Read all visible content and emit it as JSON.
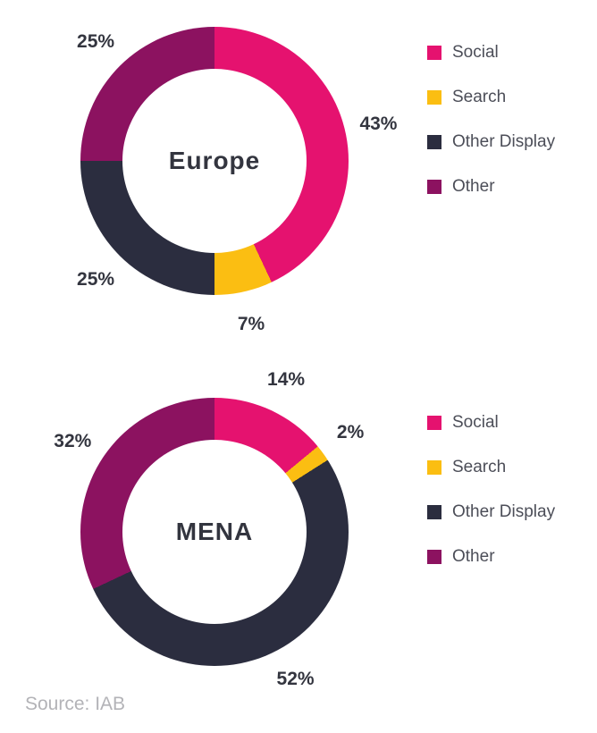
{
  "page": {
    "source_label": "Source: IAB"
  },
  "colors": {
    "social": "#E5126F",
    "search": "#FBBE12",
    "other_display": "#2B2D3F",
    "other": "#8C1260",
    "label_text": "#33353F",
    "legend_text": "#4C4E58",
    "source_text": "#B3B3B7",
    "background": "#FFFFFF"
  },
  "legend": {
    "position": "right",
    "items": [
      {
        "label": "Social",
        "color_key": "social"
      },
      {
        "label": "Search",
        "color_key": "search"
      },
      {
        "label": "Other Display",
        "color_key": "other_display"
      },
      {
        "label": "Other",
        "color_key": "other"
      }
    ]
  },
  "chart_data": [
    {
      "type": "pie",
      "subtype": "donut",
      "title": "Europe",
      "center_label": "Europe",
      "categories": [
        "Social",
        "Search",
        "Other Display",
        "Other"
      ],
      "values": [
        43,
        7,
        25,
        25
      ],
      "unit": "%",
      "data_labels": [
        "43%",
        "7%",
        "25%",
        "25%"
      ],
      "colors": [
        "#E5126F",
        "#FBBE12",
        "#2B2D3F",
        "#8C1260"
      ],
      "start_angle_deg": 0,
      "direction": "clockwise",
      "legend_position": "right",
      "grid": false
    },
    {
      "type": "pie",
      "subtype": "donut",
      "title": "MENA",
      "center_label": "MENA",
      "categories": [
        "Social",
        "Search",
        "Other Display",
        "Other"
      ],
      "values": [
        14,
        2,
        52,
        32
      ],
      "unit": "%",
      "data_labels": [
        "14%",
        "2%",
        "52%",
        "32%"
      ],
      "colors": [
        "#E5126F",
        "#FBBE12",
        "#2B2D3F",
        "#8C1260"
      ],
      "start_angle_deg": 0,
      "direction": "clockwise",
      "legend_position": "right",
      "grid": false
    }
  ]
}
